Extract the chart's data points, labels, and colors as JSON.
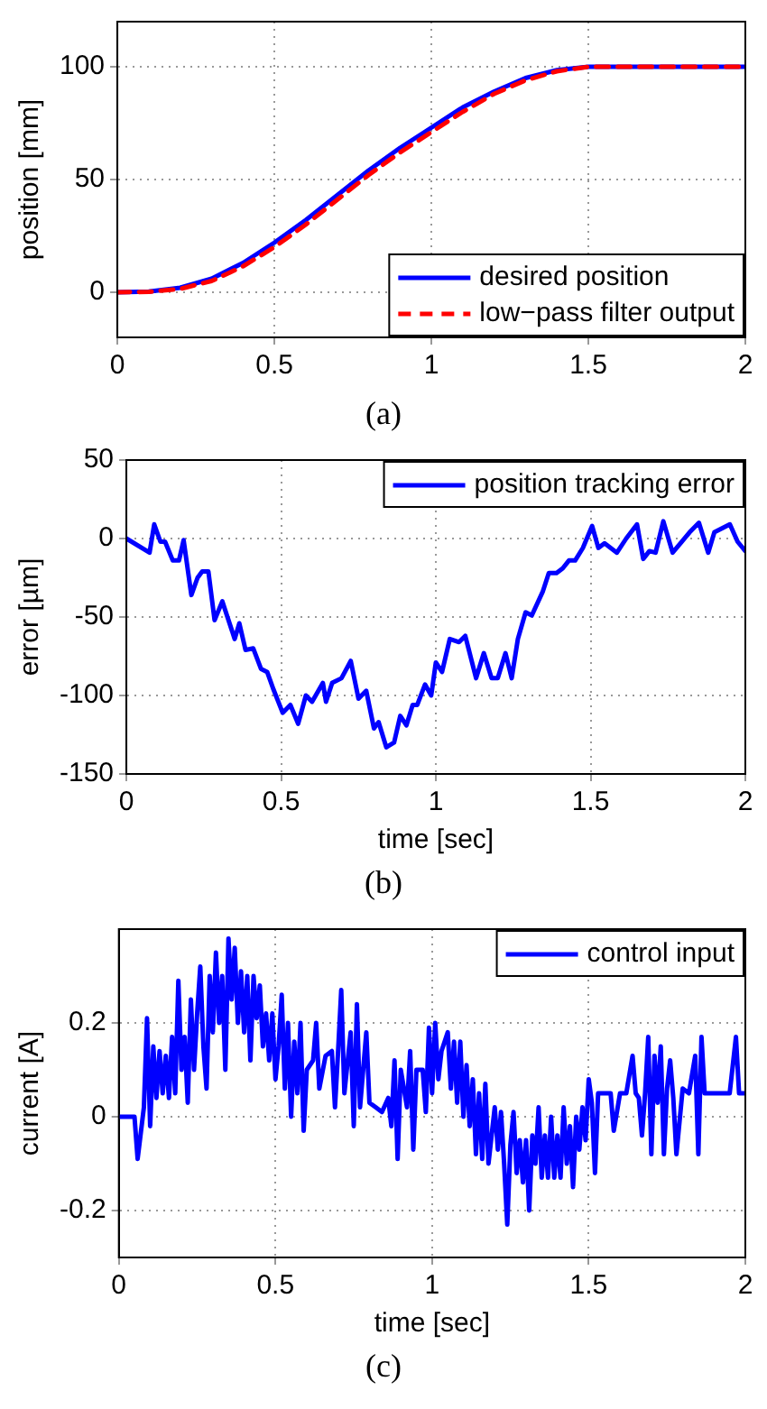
{
  "chart_data": [
    {
      "type": "line",
      "ylabel": "position [mm]",
      "xlim": [
        0,
        2
      ],
      "xticks": [
        0,
        0.5,
        1,
        1.5,
        2
      ],
      "ylim": [
        -20,
        120
      ],
      "yticks": [
        0,
        50,
        100
      ],
      "grid": true,
      "legend": "bottom right",
      "marker": "none",
      "annotations": [
        "(a)"
      ],
      "x": [
        0,
        0.1,
        0.2,
        0.3,
        0.4,
        0.5,
        0.6,
        0.7,
        0.8,
        0.9,
        1.0,
        1.1,
        1.2,
        1.3,
        1.4,
        1.5,
        2.0
      ],
      "series": [
        {
          "name": "desired position",
          "color": "#0000ff",
          "line_style": "solid",
          "values": [
            0,
            0.3,
            2,
            6,
            13,
            22,
            32,
            43,
            54,
            64,
            73,
            82,
            89,
            95,
            98.5,
            100,
            100
          ]
        },
        {
          "name": "low−pass filter output",
          "color": "#ff0000",
          "line_style": "dashed",
          "values": [
            0,
            0.2,
            1.5,
            5,
            11.5,
            20,
            30,
            41,
            52,
            62,
            71,
            80,
            88,
            94,
            98,
            100,
            100
          ]
        }
      ]
    },
    {
      "type": "line",
      "xlabel": "time [sec]",
      "ylabel": "error [µm]",
      "xlim": [
        0,
        2
      ],
      "xticks": [
        0,
        0.5,
        1,
        1.5,
        2
      ],
      "ylim": [
        -150,
        50
      ],
      "yticks": [
        -150,
        -100,
        -50,
        0,
        50
      ],
      "grid": true,
      "legend": "top right",
      "marker": "none",
      "annotations": [
        "(b)"
      ],
      "x": [
        0,
        0.075,
        0.09,
        0.11,
        0.125,
        0.15,
        0.17,
        0.185,
        0.21,
        0.23,
        0.245,
        0.265,
        0.285,
        0.31,
        0.35,
        0.365,
        0.385,
        0.41,
        0.435,
        0.455,
        0.475,
        0.505,
        0.53,
        0.555,
        0.58,
        0.6,
        0.635,
        0.645,
        0.665,
        0.695,
        0.725,
        0.75,
        0.775,
        0.8,
        0.815,
        0.84,
        0.865,
        0.885,
        0.905,
        0.925,
        0.94,
        0.965,
        0.985,
        1.0,
        1.02,
        1.045,
        1.075,
        1.095,
        1.13,
        1.155,
        1.18,
        1.2,
        1.225,
        1.245,
        1.265,
        1.29,
        1.31,
        1.345,
        1.365,
        1.39,
        1.41,
        1.43,
        1.45,
        1.475,
        1.505,
        1.525,
        1.545,
        1.585,
        1.615,
        1.65,
        1.67,
        1.69,
        1.71,
        1.735,
        1.765,
        1.795,
        1.82,
        1.85,
        1.88,
        1.9,
        1.95,
        1.975,
        2.0
      ],
      "series": [
        {
          "name": "position tracking error",
          "color": "#0000ff",
          "line_style": "solid",
          "values": [
            0,
            -9,
            9,
            -2,
            -2,
            -14,
            -14,
            -1,
            -36,
            -25,
            -21,
            -21,
            -52,
            -40,
            -64,
            -54,
            -71,
            -70,
            -83,
            -85,
            -96,
            -111,
            -106,
            -118,
            -100,
            -104,
            -92,
            -104,
            -92,
            -89,
            -78,
            -102,
            -97,
            -121,
            -117,
            -133,
            -130,
            -113,
            -119,
            -106,
            -106,
            -93,
            -100,
            -79,
            -85,
            -64,
            -66,
            -62,
            -89,
            -73,
            -89,
            -89,
            -73,
            -89,
            -64,
            -47,
            -49,
            -34,
            -22,
            -22,
            -19,
            -14,
            -14,
            -6,
            8,
            -6,
            -3,
            -9,
            0,
            9,
            -13,
            -8,
            -9,
            11,
            -9,
            -2,
            4,
            10,
            -9,
            4,
            9,
            -2,
            -8
          ]
        }
      ]
    },
    {
      "type": "line",
      "xlabel": "time [sec]",
      "ylabel": "current [A]",
      "xlim": [
        0,
        2
      ],
      "xticks": [
        0,
        0.5,
        1,
        1.5,
        2
      ],
      "ylim": [
        -0.3,
        0.4
      ],
      "yticks": [
        -0.2,
        0,
        0.2
      ],
      "grid": true,
      "legend": "top right",
      "marker": "none",
      "annotations": [
        "(c)"
      ],
      "x": [
        0,
        0.05,
        0.06,
        0.08,
        0.09,
        0.1,
        0.11,
        0.12,
        0.13,
        0.14,
        0.15,
        0.16,
        0.17,
        0.18,
        0.19,
        0.2,
        0.21,
        0.22,
        0.23,
        0.24,
        0.25,
        0.26,
        0.27,
        0.28,
        0.29,
        0.3,
        0.31,
        0.32,
        0.33,
        0.34,
        0.35,
        0.36,
        0.37,
        0.38,
        0.39,
        0.4,
        0.41,
        0.42,
        0.43,
        0.44,
        0.45,
        0.46,
        0.47,
        0.48,
        0.49,
        0.5,
        0.51,
        0.52,
        0.53,
        0.54,
        0.55,
        0.56,
        0.57,
        0.58,
        0.59,
        0.6,
        0.62,
        0.63,
        0.64,
        0.66,
        0.68,
        0.69,
        0.7,
        0.71,
        0.72,
        0.74,
        0.75,
        0.76,
        0.77,
        0.79,
        0.8,
        0.82,
        0.84,
        0.86,
        0.87,
        0.88,
        0.89,
        0.9,
        0.92,
        0.93,
        0.94,
        0.95,
        0.97,
        0.98,
        0.99,
        1.0,
        1.01,
        1.02,
        1.03,
        1.05,
        1.06,
        1.07,
        1.08,
        1.09,
        1.1,
        1.11,
        1.12,
        1.13,
        1.14,
        1.15,
        1.16,
        1.17,
        1.18,
        1.2,
        1.21,
        1.22,
        1.23,
        1.24,
        1.25,
        1.26,
        1.27,
        1.28,
        1.29,
        1.3,
        1.31,
        1.32,
        1.33,
        1.34,
        1.35,
        1.36,
        1.37,
        1.38,
        1.39,
        1.4,
        1.41,
        1.42,
        1.43,
        1.44,
        1.45,
        1.46,
        1.47,
        1.48,
        1.49,
        1.5,
        1.51,
        1.52,
        1.53,
        1.55,
        1.57,
        1.58,
        1.6,
        1.62,
        1.64,
        1.65,
        1.66,
        1.67,
        1.68,
        1.69,
        1.7,
        1.71,
        1.72,
        1.73,
        1.74,
        1.75,
        1.76,
        1.77,
        1.78,
        1.8,
        1.82,
        1.84,
        1.85,
        1.86,
        1.87,
        1.9,
        1.95,
        1.97,
        1.98,
        2.0
      ],
      "series": [
        {
          "name": "control input",
          "color": "#0000ff",
          "line_style": "solid",
          "values": [
            0,
            0,
            -0.09,
            0.02,
            0.21,
            -0.02,
            0.15,
            0.04,
            0.14,
            0.05,
            0.13,
            0.04,
            0.17,
            0.05,
            0.29,
            0.1,
            0.17,
            0.03,
            0.25,
            0.1,
            0.22,
            0.32,
            0.15,
            0.06,
            0.3,
            0.18,
            0.35,
            0.2,
            0.3,
            0.1,
            0.38,
            0.25,
            0.36,
            0.2,
            0.31,
            0.18,
            0.3,
            0.12,
            0.3,
            0.21,
            0.28,
            0.15,
            0.22,
            0.12,
            0.22,
            0.08,
            0.15,
            0.26,
            0.06,
            0.2,
            0.0,
            0.16,
            0.05,
            0.2,
            -0.03,
            0.1,
            0.12,
            0.2,
            0.06,
            0.13,
            0.14,
            0.02,
            0.14,
            0.27,
            0.05,
            0.18,
            -0.02,
            0.24,
            0.02,
            0.18,
            0.03,
            0.02,
            0.01,
            0.04,
            -0.02,
            0.12,
            -0.09,
            0.1,
            0.02,
            0.14,
            -0.07,
            0.1,
            0.1,
            0.01,
            0.19,
            0.05,
            0.2,
            0.08,
            0.14,
            0.18,
            0.06,
            0.16,
            0.03,
            0.16,
            0.0,
            0.11,
            -0.02,
            0.08,
            -0.08,
            0.05,
            -0.09,
            0.07,
            -0.1,
            0.02,
            -0.07,
            0.01,
            -0.1,
            -0.23,
            -0.06,
            0.01,
            -0.12,
            -0.05,
            -0.14,
            -0.05,
            -0.2,
            -0.04,
            -0.1,
            0.02,
            -0.13,
            -0.04,
            -0.13,
            0.0,
            -0.13,
            -0.04,
            -0.13,
            0.02,
            -0.1,
            -0.02,
            -0.15,
            0.0,
            -0.07,
            0.02,
            -0.05,
            0.08,
            0.03,
            -0.12,
            0.05,
            0.05,
            0.05,
            -0.03,
            0.05,
            0.05,
            0.13,
            0.05,
            0.04,
            -0.04,
            0.05,
            0.17,
            -0.08,
            0.13,
            0.03,
            0.15,
            -0.08,
            0.06,
            0.12,
            0.04,
            -0.08,
            0.06,
            0.05,
            0.13,
            -0.08,
            0.17,
            0.05,
            0.05,
            0.05,
            0.17,
            0.05,
            0.05
          ]
        }
      ]
    }
  ]
}
